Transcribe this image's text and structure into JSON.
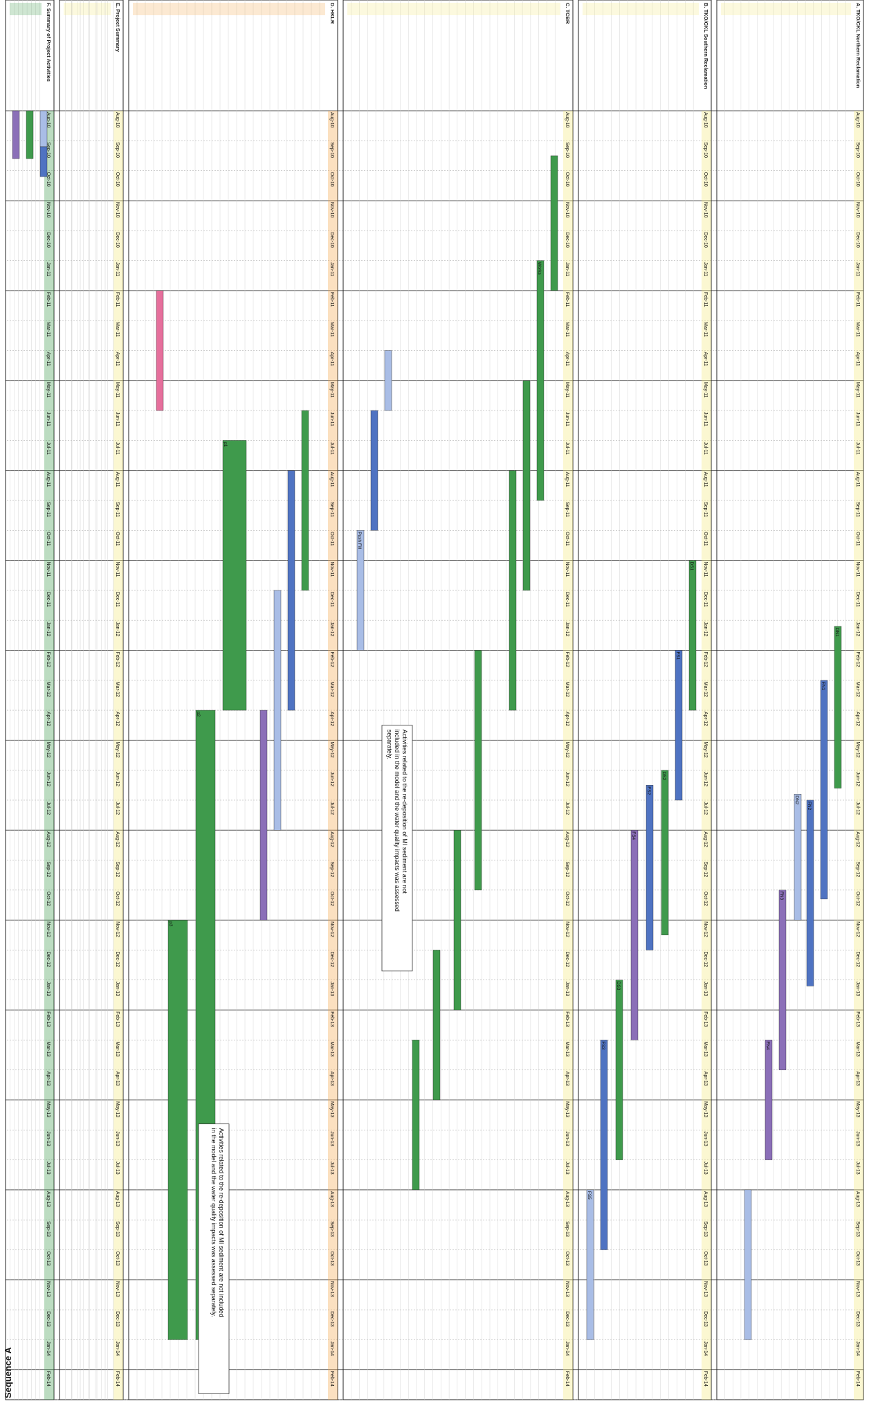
{
  "page": {
    "sequence_label": "Sequence A",
    "months": [
      "Aug-10",
      "Sep-10",
      "Oct-10",
      "Nov-10",
      "Dec-10",
      "Jan-11",
      "Feb-11",
      "Mar-11",
      "Apr-11",
      "May-11",
      "Jun-11",
      "Jul-11",
      "Aug-11",
      "Sep-11",
      "Oct-11",
      "Nov-11",
      "Dec-11",
      "Jan-12",
      "Feb-12",
      "Mar-12",
      "Apr-12",
      "May-12",
      "Jun-12",
      "Jul-12",
      "Aug-12",
      "Sep-12",
      "Oct-12",
      "Nov-12",
      "Dec-12",
      "Jan-13",
      "Feb-13",
      "Mar-13",
      "Apr-13",
      "May-13",
      "Jun-13",
      "Jul-13",
      "Aug-13",
      "Sep-13",
      "Oct-13",
      "Nov-13",
      "Dec-13",
      "Jan-14",
      "Feb-14"
    ],
    "block_titles": {
      "b1": "A. TKO/CKL Northern Reclamation",
      "b2": "B. TKO/CKL Southern Reclamation",
      "b3": "C. TCBR",
      "b4": "D. HKLR",
      "b5": "E. Project Summary",
      "b6": "F. Summary of Project Activities"
    },
    "notes": [
      "Activities related to the re-deposition of MI sediment are not included in the model and the water quality impacts was assessed separately.",
      "Activities related to the re-deposition of MI sediment are not included in the model and the water quality impacts was assessed separately."
    ],
    "bar_labels": [
      "DN1",
      "DN2",
      "FN1",
      "FN2",
      "FN3",
      "FN4",
      "DS1",
      "DS2",
      "DS3",
      "FS1",
      "FS2",
      "FS3",
      "FS4",
      "FS5",
      "FS6",
      "p1",
      "p2",
      "p3",
      "Push Fill",
      "Works"
    ],
    "colors": {
      "green": "#3f9a4c",
      "blue": "#4f73c2",
      "light_blue": "#a9bde6",
      "purple": "#8b6fb8",
      "pink": "#e66f9c",
      "yellow": "#f3e97a",
      "orange": "#f4a64b"
    }
  }
}
